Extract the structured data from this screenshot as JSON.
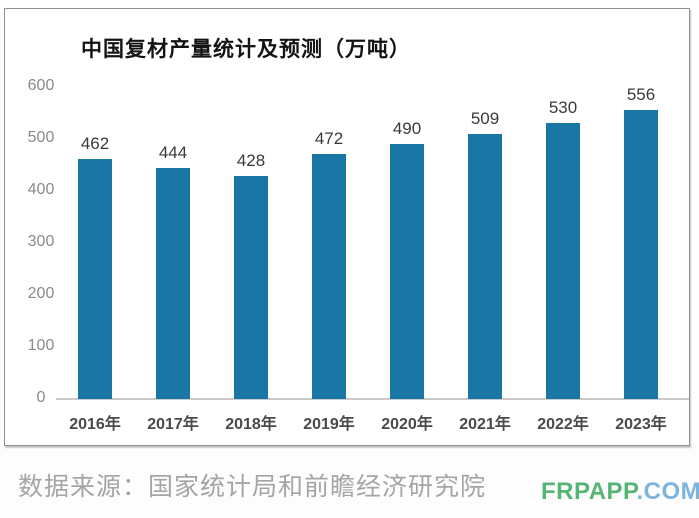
{
  "page": {
    "background": "#fdfdfd",
    "card_background": "#ffffff"
  },
  "chart_data": {
    "type": "bar",
    "title": "中国复材产量统计及预测（万吨）",
    "categories": [
      "2016年",
      "2017年",
      "2018年",
      "2019年",
      "2020年",
      "2021年",
      "2022年",
      "2023年"
    ],
    "values": [
      462,
      444,
      428,
      472,
      490,
      509,
      530,
      556
    ],
    "unit": "万吨",
    "xlabel": "",
    "ylabel": "",
    "ylim": [
      0,
      600
    ],
    "yticks": [
      0,
      100,
      200,
      300,
      400,
      500,
      600
    ],
    "grid": false,
    "legend": "none",
    "value_labels_shown": true,
    "bar_color": "#1a76a4",
    "axis_line_color": "#c9c9c9"
  },
  "footer": {
    "source_text": "数据来源：国家统计局和前瞻经济研究院",
    "source_color": "#a5a5a5"
  },
  "watermark": {
    "part1": "FRPAPP",
    "part2": ".COM",
    "part1_color": "#56b575",
    "part2_color": "#7db4de"
  }
}
